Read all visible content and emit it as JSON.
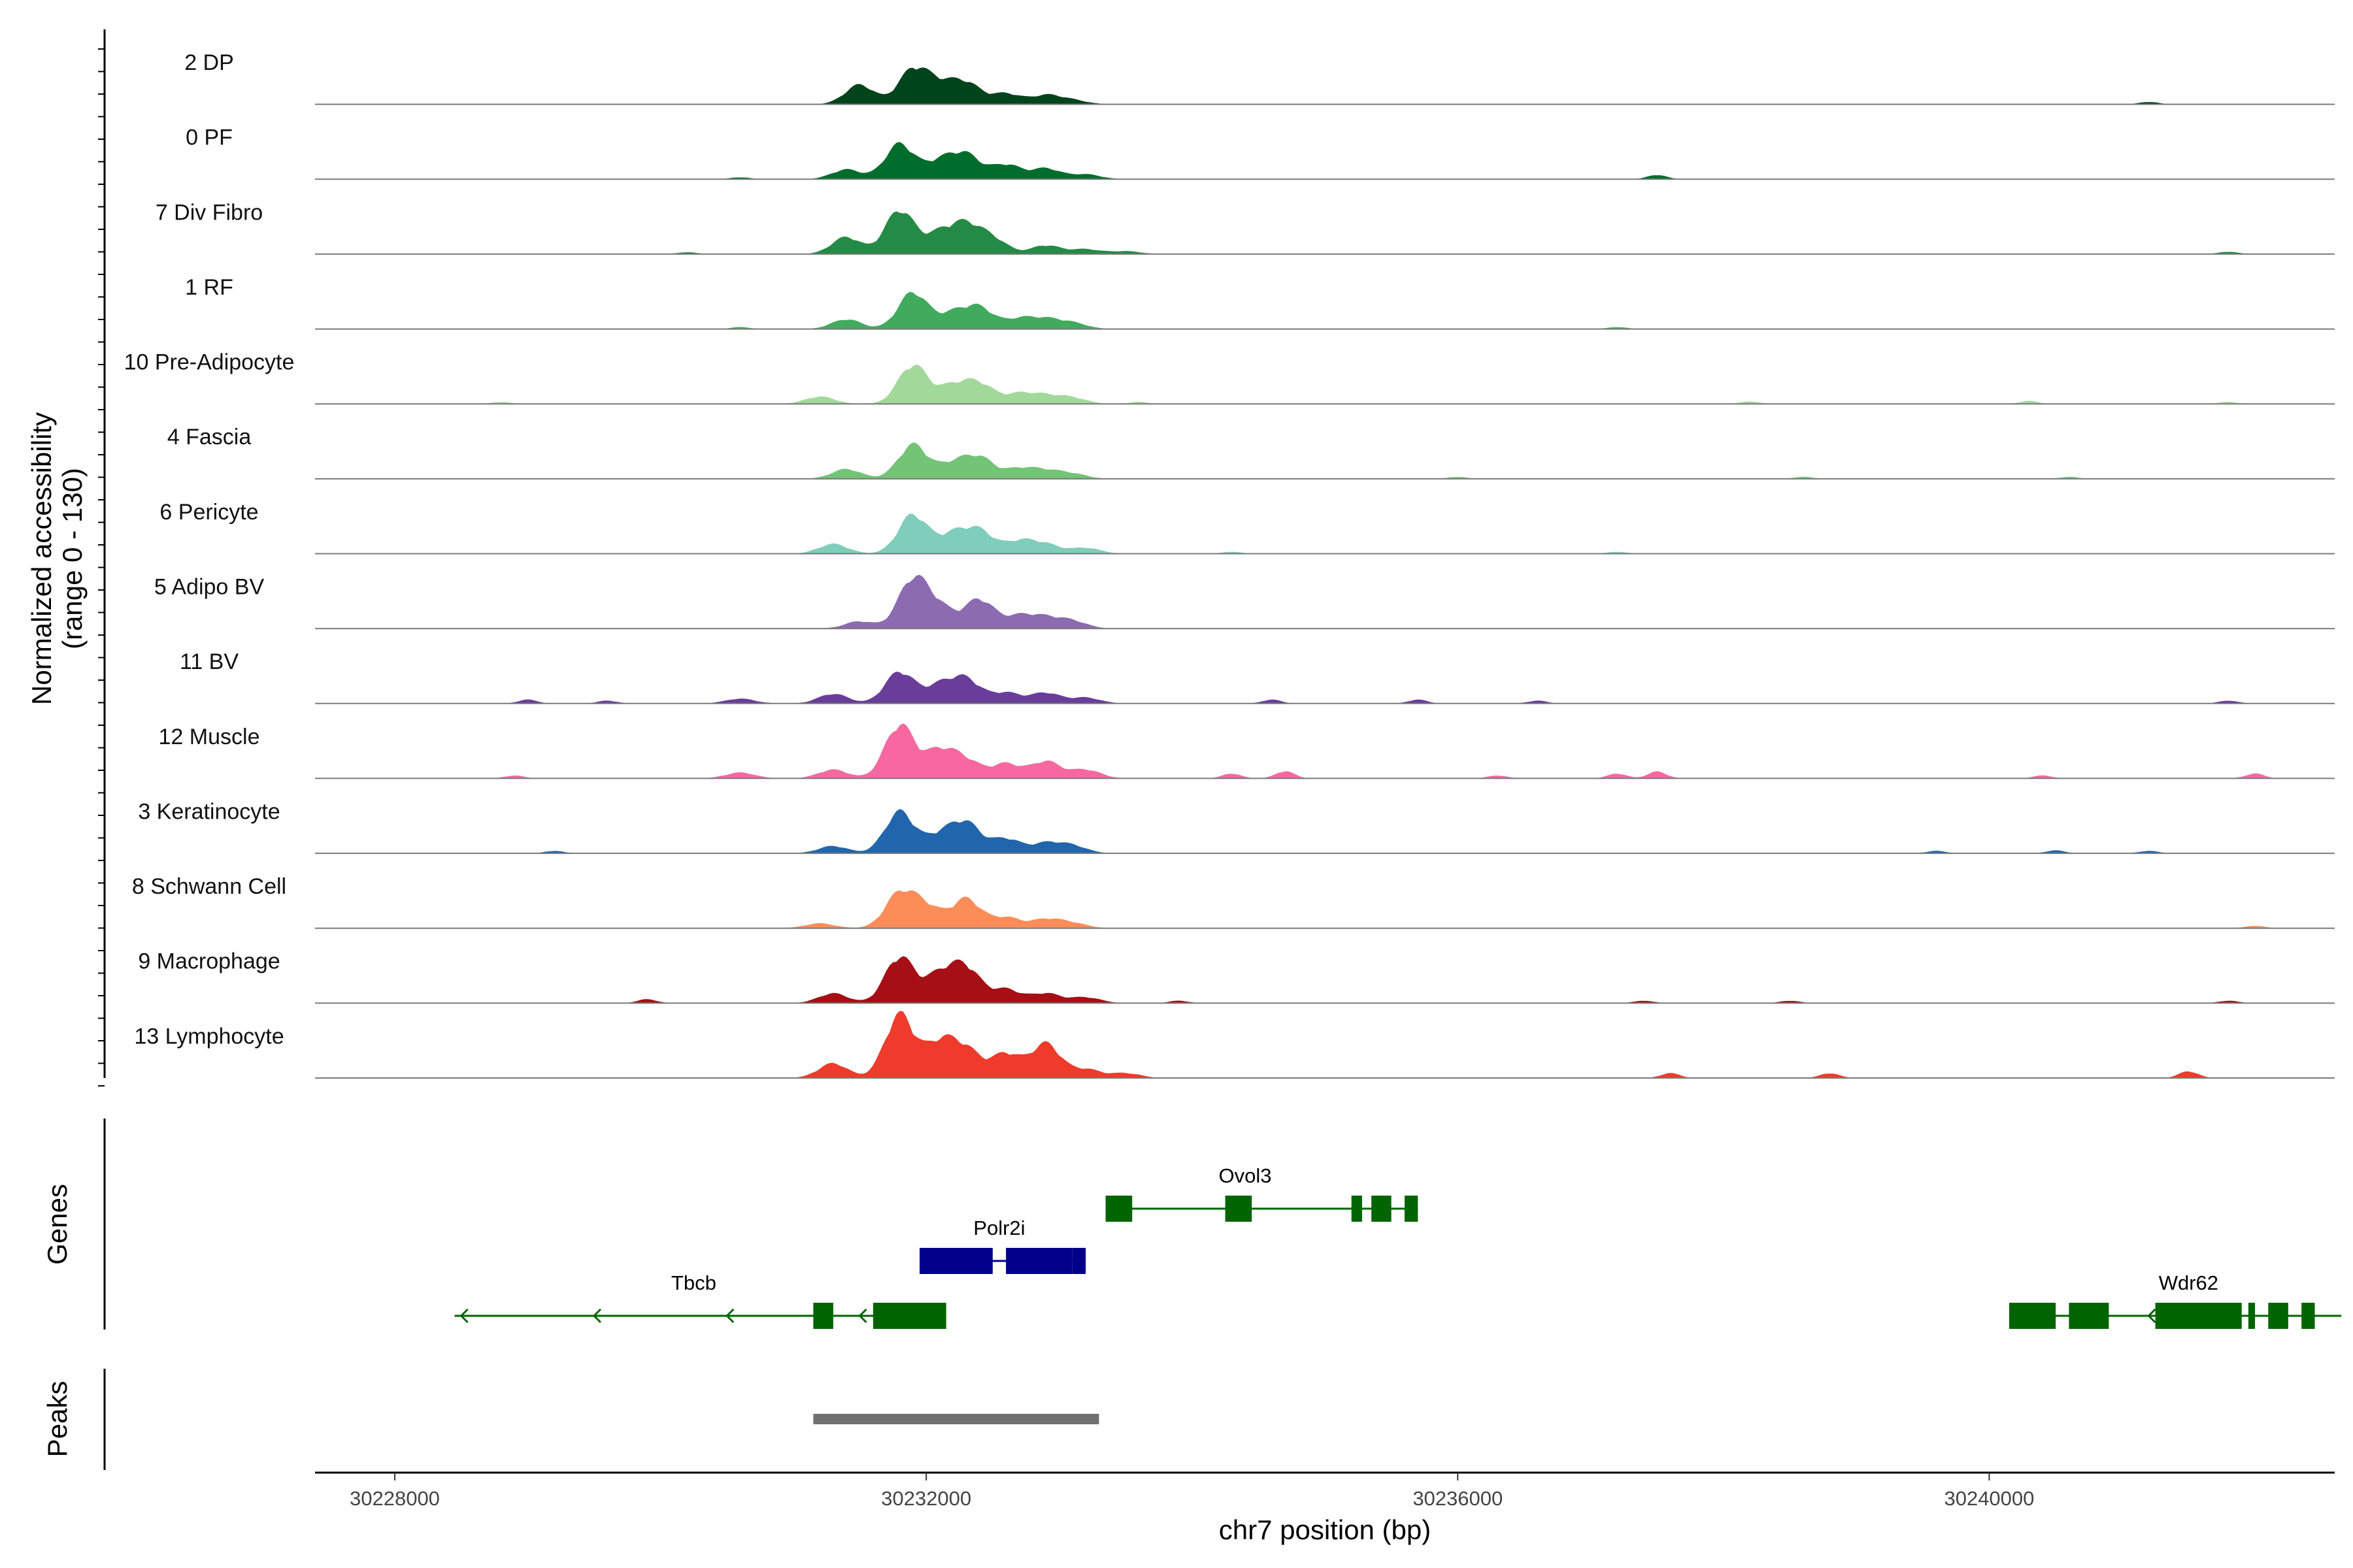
{
  "chart_data": {
    "type": "genome-coverage",
    "chromosome": "chr7",
    "xlim": [
      30227400,
      30242600
    ],
    "coverage": {
      "ylabel": "Normalized accessibility",
      "ylabel_range": "(range 0 - 130)",
      "ylim": [
        0,
        130
      ],
      "tracks": [
        {
          "name": "2 DP",
          "color": "#00441b",
          "peaks": [
            [
              30231500,
              40
            ],
            [
              30231900,
              70
            ],
            [
              30232100,
              35
            ],
            [
              30232300,
              42
            ],
            [
              30232600,
              22
            ],
            [
              30232900,
              18
            ],
            [
              30233100,
              8
            ]
          ],
          "minor": [
            [
              30241200,
              5
            ]
          ]
        },
        {
          "name": "0 PF",
          "color": "#006d2c",
          "peaks": [
            [
              30231400,
              20
            ],
            [
              30231800,
              72
            ],
            [
              30232100,
              35
            ],
            [
              30232300,
              48
            ],
            [
              30232600,
              30
            ],
            [
              30232900,
              22
            ],
            [
              30233200,
              10
            ]
          ],
          "minor": [
            [
              30230600,
              4
            ],
            [
              30237500,
              9
            ]
          ]
        },
        {
          "name": "7 Div Fibro",
          "color": "#238b45",
          "peaks": [
            [
              30231400,
              35
            ],
            [
              30231800,
              90
            ],
            [
              30232100,
              40
            ],
            [
              30232300,
              55
            ],
            [
              30232500,
              30
            ],
            [
              30232900,
              18
            ],
            [
              30233200,
              10
            ],
            [
              30233500,
              6
            ]
          ],
          "minor": [
            [
              30230200,
              4
            ],
            [
              30241800,
              5
            ]
          ]
        },
        {
          "name": "1 RF",
          "color": "#41ab5d",
          "peaks": [
            [
              30231400,
              20
            ],
            [
              30231900,
              75
            ],
            [
              30232200,
              30
            ],
            [
              30232400,
              42
            ],
            [
              30232700,
              20
            ],
            [
              30232900,
              18
            ],
            [
              30233100,
              12
            ]
          ],
          "minor": [
            [
              30230600,
              4
            ],
            [
              30237200,
              4
            ]
          ]
        },
        {
          "name": "10 Pre-Adipocyte",
          "color": "#a1d99b",
          "peaks": [
            [
              30231200,
              15
            ],
            [
              30231900,
              80
            ],
            [
              30232200,
              35
            ],
            [
              30232400,
              40
            ],
            [
              30232700,
              20
            ],
            [
              30232900,
              15
            ],
            [
              30233100,
              12
            ]
          ],
          "minor": [
            [
              30228800,
              4
            ],
            [
              30233600,
              4
            ],
            [
              30238200,
              5
            ],
            [
              30240300,
              6
            ],
            [
              30241800,
              4
            ]
          ]
        },
        {
          "name": "4 Fascia",
          "color": "#74c476",
          "peaks": [
            [
              30231400,
              20
            ],
            [
              30231900,
              70
            ],
            [
              30232200,
              30
            ],
            [
              30232400,
              42
            ],
            [
              30232700,
              20
            ],
            [
              30232900,
              15
            ],
            [
              30233100,
              10
            ]
          ],
          "minor": [
            [
              30236000,
              4
            ],
            [
              30238600,
              4
            ],
            [
              30240600,
              4
            ]
          ]
        },
        {
          "name": "6 Pericyte",
          "color": "#7fcdbb",
          "peaks": [
            [
              30231300,
              20
            ],
            [
              30231900,
              80
            ],
            [
              30232200,
              38
            ],
            [
              30232400,
              45
            ],
            [
              30232700,
              25
            ],
            [
              30232900,
              18
            ],
            [
              30233200,
              12
            ]
          ],
          "minor": [
            [
              30234300,
              4
            ],
            [
              30237200,
              4
            ]
          ]
        },
        {
          "name": "5 Adipo BV",
          "color": "#8c6bb1",
          "peaks": [
            [
              30231500,
              15
            ],
            [
              30231900,
              100
            ],
            [
              30232100,
              40
            ],
            [
              30232400,
              60
            ],
            [
              30232700,
              25
            ],
            [
              30232900,
              20
            ],
            [
              30233100,
              15
            ]
          ],
          "minor": []
        },
        {
          "name": "11 BV",
          "color": "#6a3d9a",
          "peaks": [
            [
              30230600,
              10
            ],
            [
              30231300,
              20
            ],
            [
              30231800,
              65
            ],
            [
              30232100,
              35
            ],
            [
              30232300,
              48
            ],
            [
              30232600,
              22
            ],
            [
              30232900,
              22
            ],
            [
              30233200,
              12
            ]
          ],
          "minor": [
            [
              30229000,
              8
            ],
            [
              30229600,
              6
            ],
            [
              30234600,
              8
            ],
            [
              30235700,
              8
            ],
            [
              30236600,
              6
            ],
            [
              30241800,
              6
            ]
          ]
        },
        {
          "name": "12 Muscle",
          "color": "#f768a1",
          "peaks": [
            [
              30230600,
              12
            ],
            [
              30231300,
              18
            ],
            [
              30231800,
              110
            ],
            [
              30232100,
              55
            ],
            [
              30232300,
              35
            ],
            [
              30232600,
              30
            ],
            [
              30232900,
              35
            ],
            [
              30233200,
              18
            ]
          ],
          "minor": [
            [
              30228900,
              6
            ],
            [
              30234300,
              10
            ],
            [
              30234700,
              15
            ],
            [
              30236300,
              6
            ],
            [
              30237200,
              10
            ],
            [
              30237500,
              14
            ],
            [
              30240400,
              6
            ],
            [
              30242000,
              10
            ]
          ]
        },
        {
          "name": "3 Keratinocyte",
          "color": "#2166ac",
          "peaks": [
            [
              30231300,
              15
            ],
            [
              30231800,
              85
            ],
            [
              30232100,
              35
            ],
            [
              30232300,
              60
            ],
            [
              30232600,
              30
            ],
            [
              30232900,
              20
            ],
            [
              30233100,
              15
            ]
          ],
          "minor": [
            [
              30229200,
              5
            ],
            [
              30239600,
              5
            ],
            [
              30240500,
              6
            ],
            [
              30241200,
              5
            ]
          ]
        },
        {
          "name": "8 Schwann Cell",
          "color": "#fc8d59",
          "peaks": [
            [
              30231200,
              10
            ],
            [
              30231800,
              70
            ],
            [
              30232000,
              42
            ],
            [
              30232300,
              60
            ],
            [
              30232600,
              22
            ],
            [
              30232900,
              18
            ],
            [
              30233100,
              10
            ]
          ],
          "minor": [
            [
              30242000,
              5
            ]
          ]
        },
        {
          "name": "9 Macrophage",
          "color": "#a50f15",
          "peaks": [
            [
              30231300,
              20
            ],
            [
              30231800,
              95
            ],
            [
              30232100,
              55
            ],
            [
              30232300,
              70
            ],
            [
              30232600,
              28
            ],
            [
              30232900,
              20
            ],
            [
              30233200,
              12
            ]
          ],
          "minor": [
            [
              30229900,
              8
            ],
            [
              30233900,
              5
            ],
            [
              30237400,
              5
            ],
            [
              30238500,
              5
            ],
            [
              30241800,
              5
            ]
          ]
        },
        {
          "name": "13 Lymphocyte",
          "color": "#ef3b2c",
          "peaks": [
            [
              30231300,
              30
            ],
            [
              30231800,
              130
            ],
            [
              30232100,
              70
            ],
            [
              30232300,
              55
            ],
            [
              30232600,
              50
            ],
            [
              30232900,
              70
            ],
            [
              30233200,
              18
            ],
            [
              30233500,
              10
            ]
          ],
          "minor": [
            [
              30237600,
              10
            ],
            [
              30238800,
              10
            ],
            [
              30241500,
              14
            ]
          ]
        }
      ]
    },
    "genes": {
      "panel_label": "Genes",
      "items": [
        {
          "name": "Tbcb",
          "color": "#006400",
          "strand": "-",
          "start": 30228450,
          "end": 30232150,
          "label_pos": 30230250,
          "row": 3,
          "exons": [
            [
              30231150,
              30231300
            ],
            [
              30231600,
              30232150
            ]
          ],
          "arrows": [
            30228500,
            30229500,
            30230500,
            30231500
          ]
        },
        {
          "name": "Polr2i",
          "color": "#00008b",
          "strand": "-",
          "start": 30231950,
          "end": 30233200,
          "label_pos": 30232550,
          "row": 2,
          "exons": [
            [
              30231950,
              30232500
            ],
            [
              30232600,
              30233100
            ],
            [
              30233100,
              30233200
            ]
          ],
          "arrows": [
            30232000
          ]
        },
        {
          "name": "Ovol3",
          "color": "#006400",
          "strand": "+",
          "start": 30233350,
          "end": 30235700,
          "label_pos": 30234400,
          "row": 1,
          "exons": [
            [
              30233350,
              30233550
            ],
            [
              30234250,
              30234450
            ],
            [
              30235200,
              30235280
            ],
            [
              30235350,
              30235500
            ],
            [
              30235600,
              30235700
            ]
          ],
          "arrows": []
        },
        {
          "name": "Wdr62",
          "color": "#006400",
          "strand": "-",
          "start": 30240150,
          "end": 30242650,
          "label_pos": 30241500,
          "row": 3,
          "exons": [
            [
              30240150,
              30240500
            ],
            [
              30240600,
              30240900
            ],
            [
              30241250,
              30241900
            ],
            [
              30241950,
              30242000
            ],
            [
              30242100,
              30242250
            ],
            [
              30242350,
              30242450
            ]
          ],
          "arrows": [
            30241200
          ]
        }
      ]
    },
    "peaks": {
      "panel_label": "Peaks",
      "color": "#707070",
      "regions": [
        [
          30231150,
          30233300
        ]
      ]
    },
    "xaxis": {
      "title": "chr7 position (bp)",
      "ticks": [
        30228000,
        30232000,
        30236000,
        30240000
      ],
      "tick_labels": [
        "30228000",
        "30232000",
        "30236000",
        "30240000"
      ]
    }
  }
}
